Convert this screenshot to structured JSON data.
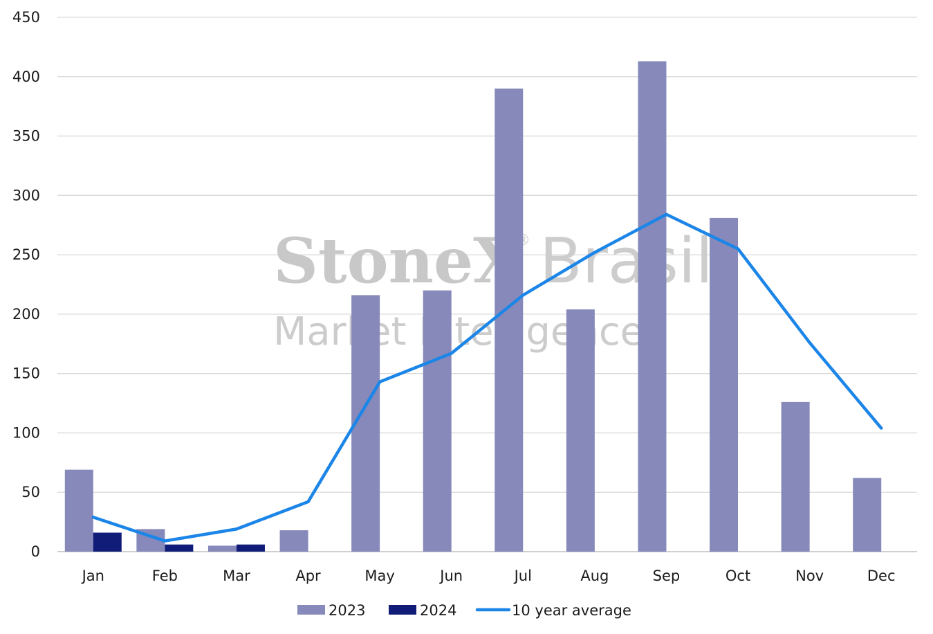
{
  "watermark": {
    "brand": "StoneX",
    "mark": "®",
    "brand2": "Brasil",
    "tagline": "Market Intelligence"
  },
  "chart_data": {
    "type": "bar",
    "categories": [
      "Jan",
      "Feb",
      "Mar",
      "Apr",
      "May",
      "Jun",
      "Jul",
      "Aug",
      "Sep",
      "Oct",
      "Nov",
      "Dec"
    ],
    "ylim": [
      0,
      450
    ],
    "yticks": [
      0,
      50,
      100,
      150,
      200,
      250,
      300,
      350,
      400,
      450
    ],
    "grid": true,
    "legend_position": "bottom",
    "series": [
      {
        "name": "2023",
        "kind": "bar",
        "color": "#8689ba",
        "values": [
          69,
          19,
          5,
          18,
          216,
          220,
          390,
          204,
          413,
          281,
          126,
          62
        ]
      },
      {
        "name": "2024",
        "kind": "bar",
        "color": "#101c78",
        "values": [
          16,
          6,
          6,
          null,
          null,
          null,
          null,
          null,
          null,
          null,
          null,
          null
        ]
      },
      {
        "name": "10 year average",
        "kind": "line",
        "color": "#1c85e8",
        "values": [
          29,
          9,
          19,
          42,
          143,
          167,
          216,
          252,
          284,
          255,
          176,
          104
        ]
      }
    ]
  }
}
